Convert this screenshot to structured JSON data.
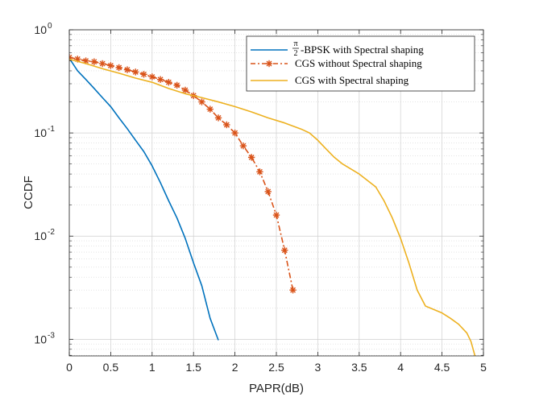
{
  "chart_data": {
    "type": "line",
    "title": "",
    "xlabel": "PAPR(dB)",
    "ylabel": "CCDF",
    "xlim": [
      0,
      5
    ],
    "ylim": [
      0.00069,
      1
    ],
    "y_scale": "log",
    "grid": true,
    "minor_grid": true,
    "legend_position": "top-right",
    "x_ticks": [
      "0",
      "0.5",
      "1",
      "1.5",
      "2",
      "2.5",
      "3",
      "3.5",
      "4",
      "4.5",
      "5"
    ],
    "y_ticks": [
      {
        "value": 1,
        "base": "10",
        "exp": "0"
      },
      {
        "value": 0.1,
        "base": "10",
        "exp": "-1"
      },
      {
        "value": 0.01,
        "base": "10",
        "exp": "-2"
      },
      {
        "value": 0.001,
        "base": "10",
        "exp": "-3"
      }
    ],
    "series": [
      {
        "name": "-BPSK with Spectral shaping",
        "name_prefix_fraction": {
          "numerator": "π",
          "denominator": "2"
        },
        "color": "#0072BD",
        "line_style": "solid",
        "marker": "none",
        "x": [
          0,
          0.1,
          0.2,
          0.3,
          0.4,
          0.5,
          0.6,
          0.7,
          0.8,
          0.9,
          1.0,
          1.1,
          1.2,
          1.3,
          1.4,
          1.5,
          1.6,
          1.7,
          1.8
        ],
        "y": [
          0.53,
          0.4,
          0.33,
          0.27,
          0.22,
          0.18,
          0.14,
          0.11,
          0.085,
          0.066,
          0.048,
          0.033,
          0.022,
          0.015,
          0.0095,
          0.0055,
          0.0033,
          0.0016,
          0.00098
        ]
      },
      {
        "name": "CGS without Spectral shaping",
        "color": "#D95319",
        "line_style": "dash-dot",
        "marker": "asterisk",
        "x": [
          0,
          0.1,
          0.2,
          0.3,
          0.4,
          0.5,
          0.6,
          0.7,
          0.8,
          0.9,
          1.0,
          1.1,
          1.2,
          1.3,
          1.4,
          1.5,
          1.6,
          1.7,
          1.8,
          1.9,
          2.0,
          2.1,
          2.2,
          2.3,
          2.4,
          2.5,
          2.6,
          2.7
        ],
        "y": [
          0.54,
          0.52,
          0.5,
          0.49,
          0.47,
          0.45,
          0.43,
          0.41,
          0.39,
          0.37,
          0.35,
          0.33,
          0.31,
          0.29,
          0.26,
          0.23,
          0.2,
          0.17,
          0.14,
          0.12,
          0.1,
          0.075,
          0.058,
          0.042,
          0.027,
          0.016,
          0.0073,
          0.003
        ]
      },
      {
        "name": "CGS with Spectral shaping",
        "color": "#EDB120",
        "line_style": "solid",
        "marker": "none",
        "x": [
          0,
          0.2,
          0.4,
          0.6,
          0.8,
          1.0,
          1.2,
          1.4,
          1.6,
          1.8,
          2.0,
          2.2,
          2.4,
          2.6,
          2.8,
          2.9,
          3.0,
          3.1,
          3.2,
          3.3,
          3.5,
          3.7,
          3.8,
          3.9,
          4.0,
          4.1,
          4.2,
          4.3,
          4.5,
          4.6,
          4.7,
          4.8,
          4.85,
          4.9
        ],
        "y": [
          0.52,
          0.47,
          0.42,
          0.38,
          0.34,
          0.31,
          0.27,
          0.24,
          0.22,
          0.2,
          0.18,
          0.16,
          0.14,
          0.125,
          0.109,
          0.1,
          0.085,
          0.07,
          0.058,
          0.05,
          0.04,
          0.03,
          0.022,
          0.015,
          0.0095,
          0.0055,
          0.003,
          0.0021,
          0.0018,
          0.0016,
          0.0014,
          0.00115,
          0.00095,
          0.00068
        ]
      }
    ]
  }
}
